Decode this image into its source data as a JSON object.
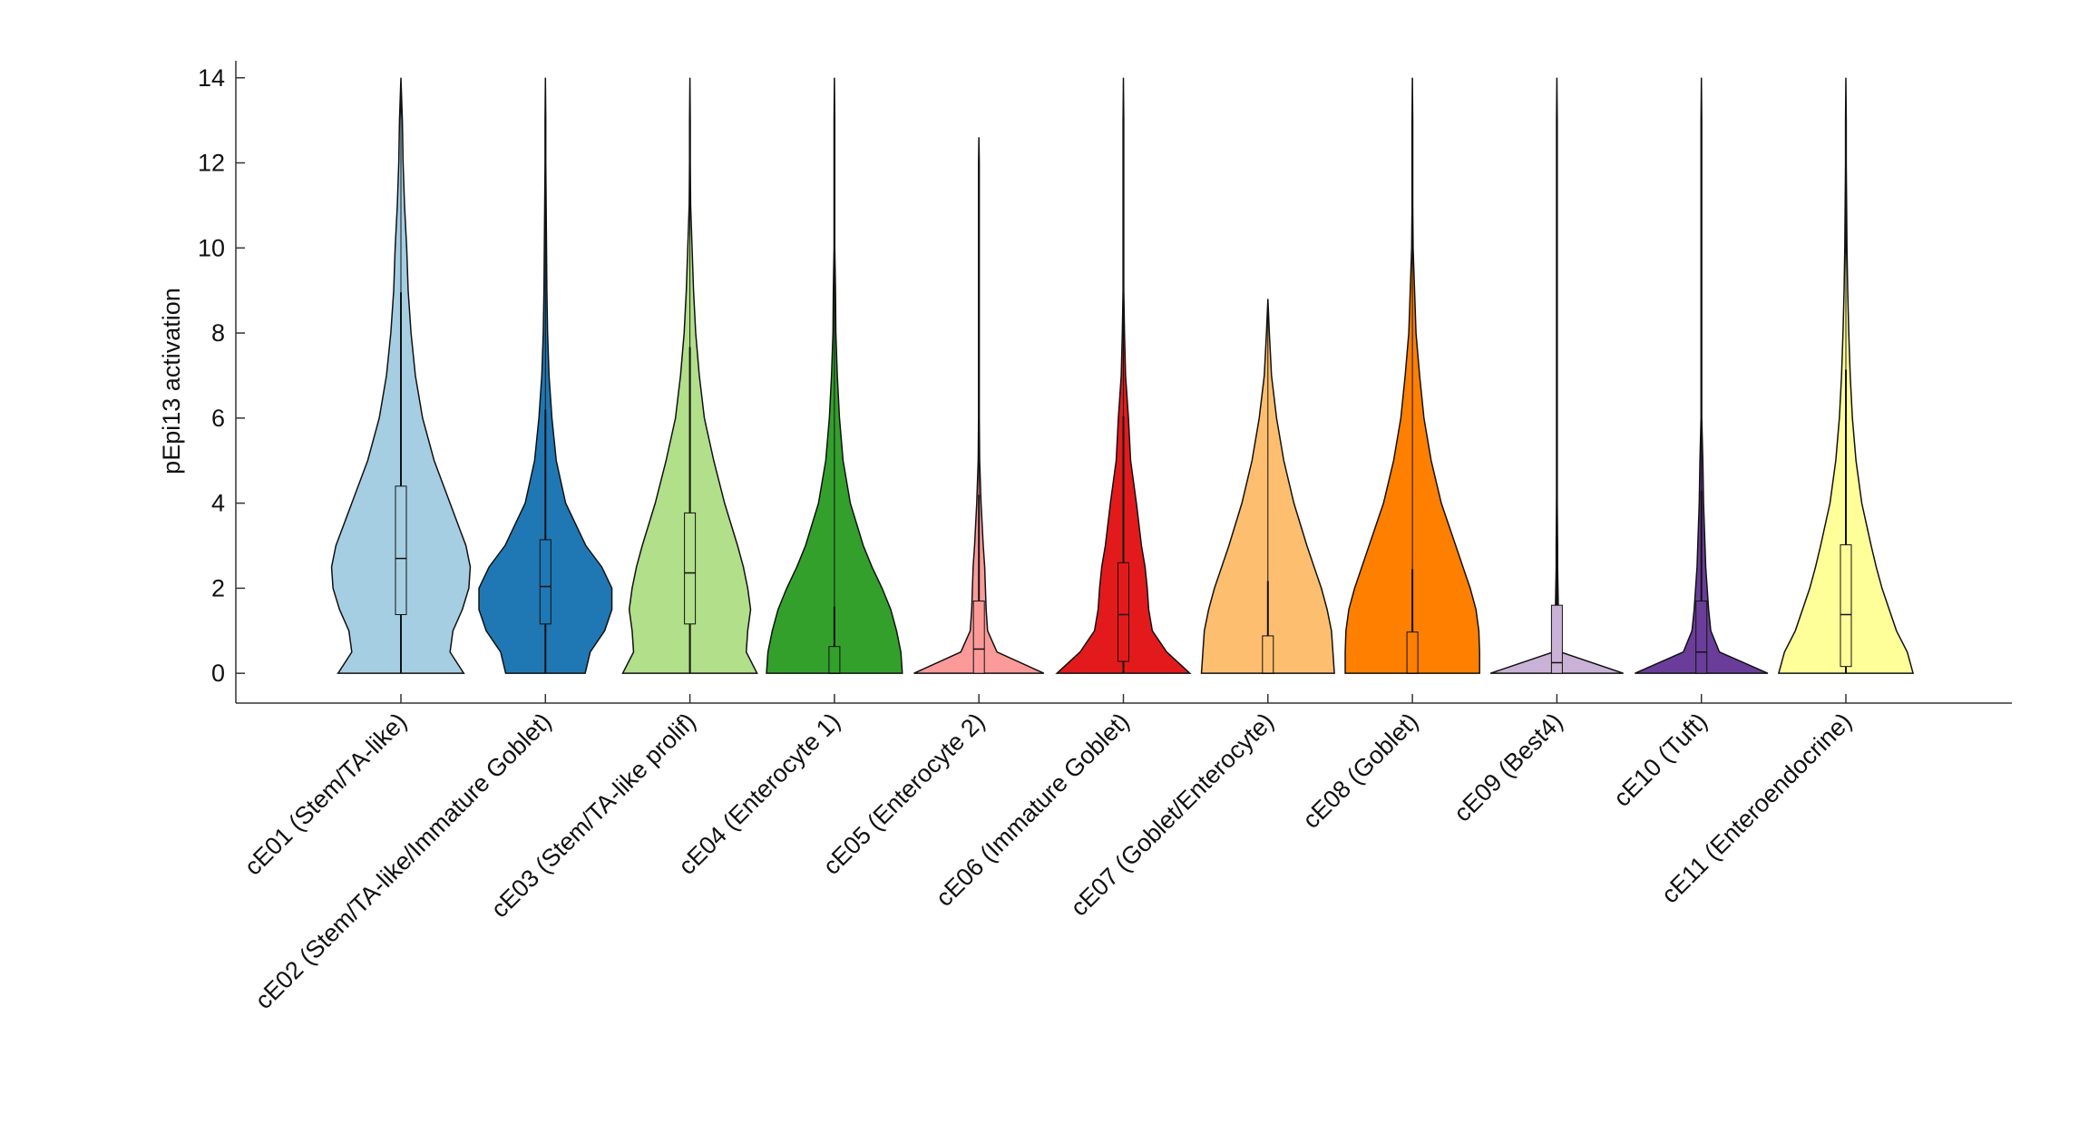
{
  "chart_data": {
    "type": "violin",
    "ylabel": "pEpi13 activation",
    "categories": [
      "cE01 (Stem/TA-like)",
      "cE02 (Stem/TA-like/Immature Goblet)",
      "cE03 (Stem/TA-like prolif)",
      "cE04 (Enterocyte 1)",
      "cE05 (Enterocyte 2)",
      "cE06 (Immature Goblet)",
      "cE07 (Goblet/Enterocyte)",
      "cE08 (Goblet)",
      "cE09 (Best4)",
      "cE10 (Tuft)",
      "cE11 (Enteroendocrine)"
    ],
    "ylim": [
      -0.7,
      14.4
    ],
    "yticks": [
      0,
      2,
      4,
      6,
      8,
      10,
      12,
      14
    ],
    "density_y": [
      0,
      0.5,
      1,
      1.5,
      2,
      2.5,
      3,
      4,
      5,
      6,
      7,
      8,
      9,
      10,
      11,
      12,
      13,
      14
    ],
    "series": [
      {
        "color": "#a6cee3",
        "density": [
          0.87,
          0.68,
          0.72,
          0.85,
          0.94,
          0.96,
          0.9,
          0.68,
          0.46,
          0.3,
          0.2,
          0.14,
          0.1,
          0.08,
          0.05,
          0.03,
          0.02,
          0.01
        ],
        "q1": 1.38,
        "median": 2.7,
        "q3": 4.4,
        "whisker_low": 0,
        "whisker_high": 8.96,
        "max": 14
      },
      {
        "color": "#1f78b4",
        "density": [
          0.55,
          0.62,
          0.82,
          0.92,
          0.92,
          0.78,
          0.56,
          0.28,
          0.15,
          0.09,
          0.05,
          0.03,
          0.02,
          0.015,
          0.01,
          0.005,
          0.005,
          0.005
        ],
        "q1": 1.16,
        "median": 2.04,
        "q3": 3.14,
        "whisker_low": 0,
        "whisker_high": 6.2,
        "max": 14
      },
      {
        "color": "#b2df8a",
        "density": [
          0.93,
          0.78,
          0.8,
          0.84,
          0.8,
          0.74,
          0.66,
          0.48,
          0.33,
          0.2,
          0.13,
          0.08,
          0.05,
          0.03,
          0.01,
          0.005,
          0.005,
          0.005
        ],
        "q1": 1.16,
        "median": 2.36,
        "q3": 3.77,
        "whisker_low": 0,
        "whisker_high": 7.67,
        "max": 14
      },
      {
        "color": "#33a02c",
        "density": [
          0.94,
          0.92,
          0.86,
          0.78,
          0.66,
          0.52,
          0.4,
          0.22,
          0.12,
          0.07,
          0.04,
          0.02,
          0.015,
          0.005,
          0.005,
          0.005,
          0.005,
          0.005
        ],
        "q1": 0,
        "median": 0,
        "q3": 0.63,
        "whisker_low": 0,
        "whisker_high": 1.57,
        "max": 14
      },
      {
        "color": "#fb9a99",
        "density": [
          0.9,
          0.25,
          0.12,
          0.1,
          0.09,
          0.08,
          0.06,
          0.03,
          0.01,
          0.005,
          0.005,
          0.005,
          0.005,
          0.005,
          0.005,
          0.005,
          0,
          0
        ],
        "q1": 0,
        "median": 0.57,
        "q3": 1.7,
        "whisker_low": 0,
        "whisker_high": 4.2,
        "max": 12.6
      },
      {
        "color": "#e31a1c",
        "density": [
          0.92,
          0.6,
          0.4,
          0.35,
          0.33,
          0.3,
          0.25,
          0.18,
          0.1,
          0.07,
          0.03,
          0.015,
          0.005,
          0.005,
          0.005,
          0.005,
          0.005,
          0.005
        ],
        "q1": 0.28,
        "median": 1.38,
        "q3": 2.6,
        "whisker_low": 0,
        "whisker_high": 6.04,
        "max": 14
      },
      {
        "color": "#fdbf6f",
        "density": [
          0.92,
          0.9,
          0.88,
          0.82,
          0.74,
          0.64,
          0.54,
          0.36,
          0.22,
          0.12,
          0.05,
          0.02,
          0,
          0,
          0,
          0,
          0,
          0
        ],
        "q1": 0,
        "median": 0,
        "q3": 0.88,
        "whisker_low": 0,
        "whisker_high": 2.17,
        "max": 8.8
      },
      {
        "color": "#ff7f00",
        "density": [
          0.93,
          0.93,
          0.92,
          0.88,
          0.8,
          0.7,
          0.6,
          0.4,
          0.26,
          0.16,
          0.1,
          0.05,
          0.03,
          0.01,
          0.005,
          0.005,
          0.005,
          0.005
        ],
        "q1": 0,
        "median": 0,
        "q3": 0.97,
        "whisker_low": 0,
        "whisker_high": 2.45,
        "max": 14
      },
      {
        "color": "#cab2d6",
        "density": [
          0.92,
          0.05,
          0.03,
          0.02,
          0.015,
          0.01,
          0.01,
          0.005,
          0.005,
          0.005,
          0.005,
          0.005,
          0.005,
          0.005,
          0.005,
          0.005,
          0.005,
          0.005
        ],
        "q1": 0,
        "median": 0.25,
        "q3": 1.6,
        "whisker_low": 0,
        "whisker_high": 4.1,
        "max": 14
      },
      {
        "color": "#6a3d9a",
        "density": [
          0.92,
          0.25,
          0.13,
          0.1,
          0.08,
          0.06,
          0.05,
          0.03,
          0.02,
          0.005,
          0.005,
          0.005,
          0.005,
          0.005,
          0.005,
          0.005,
          0.005,
          0.005
        ],
        "q1": 0,
        "median": 0.5,
        "q3": 1.7,
        "whisker_low": 0,
        "whisker_high": 4.3,
        "max": 14
      },
      {
        "color": "#ffff99",
        "density": [
          0.93,
          0.85,
          0.7,
          0.6,
          0.5,
          0.42,
          0.35,
          0.22,
          0.14,
          0.09,
          0.06,
          0.04,
          0.025,
          0.015,
          0.01,
          0.005,
          0.005,
          0.005
        ],
        "q1": 0.16,
        "median": 1.38,
        "q3": 3.02,
        "whisker_low": 0,
        "whisker_high": 7.14,
        "max": 14
      }
    ]
  }
}
